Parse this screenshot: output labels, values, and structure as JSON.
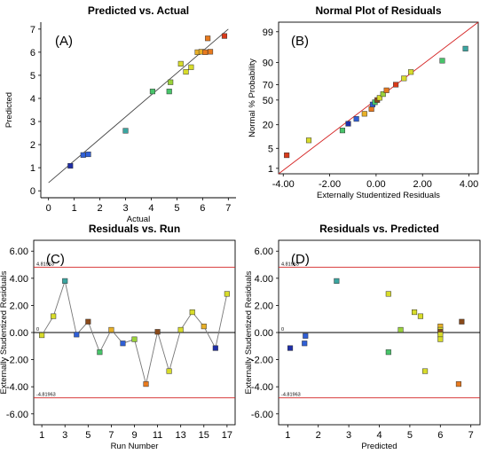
{
  "colors": {
    "palette": [
      "#1f2fa8",
      "#2f5fd6",
      "#3aa5a0",
      "#48c46a",
      "#9ad23a",
      "#d8dc2a",
      "#e8b028",
      "#e87a1e",
      "#d93a1a",
      "#8a4a1a"
    ],
    "fit_line": "#444444",
    "limit_line": "#d42020",
    "connect_line": "#777777",
    "zero_line": "#000000"
  },
  "chart_data": [
    {
      "id": "A",
      "type": "scatter",
      "panel_label": "(A)",
      "title": "Predicted vs. Actual",
      "xlabel": "Actual",
      "ylabel": "Predicted",
      "xlim": [
        -0.3,
        7.3
      ],
      "ylim": [
        -0.3,
        7.3
      ],
      "xticks": [
        "0",
        "1",
        "2",
        "3",
        "4",
        "5",
        "6",
        "7"
      ],
      "yticks": [
        "0",
        "1",
        "2",
        "3",
        "4",
        "5",
        "6",
        "7"
      ],
      "fit_line": [
        [
          0,
          0.35
        ],
        [
          7,
          7
        ]
      ],
      "points": [
        {
          "x": 0.85,
          "y": 1.08,
          "c": 0
        },
        {
          "x": 1.35,
          "y": 1.55,
          "c": 1
        },
        {
          "x": 1.55,
          "y": 1.58,
          "c": 1
        },
        {
          "x": 3.0,
          "y": 2.6,
          "c": 2
        },
        {
          "x": 4.05,
          "y": 4.3,
          "c": 3
        },
        {
          "x": 4.7,
          "y": 4.3,
          "c": 3
        },
        {
          "x": 4.75,
          "y": 4.7,
          "c": 4
        },
        {
          "x": 5.15,
          "y": 5.5,
          "c": 5
        },
        {
          "x": 5.35,
          "y": 5.15,
          "c": 5
        },
        {
          "x": 5.55,
          "y": 5.35,
          "c": 5
        },
        {
          "x": 5.8,
          "y": 6.0,
          "c": 6
        },
        {
          "x": 5.95,
          "y": 6.02,
          "c": 6
        },
        {
          "x": 6.1,
          "y": 6.0,
          "c": 7
        },
        {
          "x": 6.2,
          "y": 6.6,
          "c": 7
        },
        {
          "x": 6.3,
          "y": 6.02,
          "c": 7
        },
        {
          "x": 6.85,
          "y": 6.7,
          "c": 8
        }
      ]
    },
    {
      "id": "B",
      "type": "scatter",
      "panel_label": "(B)",
      "title": "Normal Plot of Residuals",
      "xlabel": "Externally Studentized Residuals",
      "ylabel": "Normal % Probability",
      "xlim": [
        -4.2,
        4.4
      ],
      "xticks": [
        "-4.00",
        "-2.00",
        "0.00",
        "2.00",
        "4.00"
      ],
      "yticks": [
        "1",
        "5",
        "20",
        "50",
        "70",
        "90",
        "99"
      ],
      "ytick_values": [
        1,
        5,
        20,
        50,
        70,
        90,
        99
      ],
      "fit_line": [
        [
          -4.2,
          0.6
        ],
        [
          4.4,
          99.6
        ]
      ],
      "points": [
        {
          "x": -3.85,
          "y": 3,
          "c": 8
        },
        {
          "x": -2.9,
          "y": 8.5,
          "c": 5
        },
        {
          "x": -1.45,
          "y": 15,
          "c": 3
        },
        {
          "x": -1.2,
          "y": 21,
          "c": 0
        },
        {
          "x": -0.85,
          "y": 26,
          "c": 1
        },
        {
          "x": -0.5,
          "y": 32,
          "c": 6
        },
        {
          "x": -0.2,
          "y": 38,
          "c": 7
        },
        {
          "x": -0.15,
          "y": 44,
          "c": 1
        },
        {
          "x": -0.05,
          "y": 47,
          "c": 3
        },
        {
          "x": 0.05,
          "y": 50,
          "c": 9
        },
        {
          "x": 0.15,
          "y": 53,
          "c": 5
        },
        {
          "x": 0.3,
          "y": 58,
          "c": 4
        },
        {
          "x": 0.45,
          "y": 63,
          "c": 7
        },
        {
          "x": 0.85,
          "y": 70,
          "c": 8
        },
        {
          "x": 1.2,
          "y": 77,
          "c": 5
        },
        {
          "x": 1.5,
          "y": 83,
          "c": 5
        },
        {
          "x": 2.85,
          "y": 91,
          "c": 3
        },
        {
          "x": 3.85,
          "y": 96,
          "c": 2
        }
      ]
    },
    {
      "id": "C",
      "type": "line",
      "panel_label": "(C)",
      "title": "Residuals vs. Run",
      "xlabel": "Run Number",
      "ylabel": "Externally Studentized Residuals",
      "xlim": [
        0.3,
        17.7
      ],
      "ylim": [
        -6.8,
        6.8
      ],
      "xticks": [
        1,
        3,
        5,
        7,
        9,
        11,
        13,
        15,
        17
      ],
      "yticks": [
        "-6.00",
        "-4.00",
        "-2.00",
        "0.00",
        "2.00",
        "4.00",
        "6.00"
      ],
      "ytick_values": [
        -6,
        -4,
        -2,
        0,
        2,
        4,
        6
      ],
      "limits": {
        "upper": 4.81963,
        "lower": -4.81963,
        "upper_label": "4.81963",
        "lower_label": "-4.81963"
      },
      "zero_label": "0",
      "points": [
        {
          "x": 1,
          "y": -0.2,
          "c": 5
        },
        {
          "x": 2,
          "y": 1.2,
          "c": 5
        },
        {
          "x": 3,
          "y": 3.8,
          "c": 2
        },
        {
          "x": 4,
          "y": -0.15,
          "c": 1
        },
        {
          "x": 5,
          "y": 0.8,
          "c": 9
        },
        {
          "x": 6,
          "y": -1.45,
          "c": 3
        },
        {
          "x": 7,
          "y": 0.2,
          "c": 6
        },
        {
          "x": 8,
          "y": -0.8,
          "c": 1
        },
        {
          "x": 9,
          "y": -0.5,
          "c": 4
        },
        {
          "x": 10,
          "y": -3.8,
          "c": 7
        },
        {
          "x": 11,
          "y": 0.05,
          "c": 9
        },
        {
          "x": 12,
          "y": -2.85,
          "c": 5
        },
        {
          "x": 13,
          "y": 0.2,
          "c": 5
        },
        {
          "x": 14,
          "y": 1.5,
          "c": 5
        },
        {
          "x": 15,
          "y": 0.45,
          "c": 6
        },
        {
          "x": 16,
          "y": -1.15,
          "c": 0
        },
        {
          "x": 17,
          "y": 2.85,
          "c": 5
        }
      ]
    },
    {
      "id": "D",
      "type": "scatter",
      "panel_label": "(D)",
      "title": "Residuals vs. Predicted",
      "xlabel": "Predicted",
      "ylabel": "Externally Studentized Residuals",
      "xlim": [
        0.7,
        7.3
      ],
      "ylim": [
        -6.8,
        6.8
      ],
      "xticks": [
        "1",
        "2",
        "3",
        "4",
        "5",
        "6",
        "7"
      ],
      "yticks": [
        "-6.00",
        "-4.00",
        "-2.00",
        "0.00",
        "2.00",
        "4.00",
        "6.00"
      ],
      "ytick_values": [
        -6,
        -4,
        -2,
        0,
        2,
        4,
        6
      ],
      "limits": {
        "upper": 4.81963,
        "lower": -4.81963,
        "upper_label": "4.81963",
        "lower_label": "-4.81963"
      },
      "zero_label": "0",
      "points": [
        {
          "x": 1.08,
          "y": -1.15,
          "c": 0
        },
        {
          "x": 1.55,
          "y": -0.8,
          "c": 1
        },
        {
          "x": 1.58,
          "y": -0.25,
          "c": 1
        },
        {
          "x": 2.6,
          "y": 3.8,
          "c": 2
        },
        {
          "x": 4.3,
          "y": 2.85,
          "c": 5
        },
        {
          "x": 4.3,
          "y": -1.45,
          "c": 3
        },
        {
          "x": 4.7,
          "y": 0.2,
          "c": 4
        },
        {
          "x": 5.15,
          "y": 1.5,
          "c": 5
        },
        {
          "x": 5.35,
          "y": 1.2,
          "c": 5
        },
        {
          "x": 5.5,
          "y": -2.85,
          "c": 5
        },
        {
          "x": 6.0,
          "y": 0.45,
          "c": 6
        },
        {
          "x": 6.0,
          "y": 0.2,
          "c": 5
        },
        {
          "x": 6.0,
          "y": 0.05,
          "c": 9
        },
        {
          "x": 6.0,
          "y": -0.15,
          "c": 5
        },
        {
          "x": 6.0,
          "y": -0.5,
          "c": 5
        },
        {
          "x": 6.6,
          "y": -3.8,
          "c": 7
        },
        {
          "x": 6.7,
          "y": 0.8,
          "c": 9
        }
      ]
    }
  ]
}
